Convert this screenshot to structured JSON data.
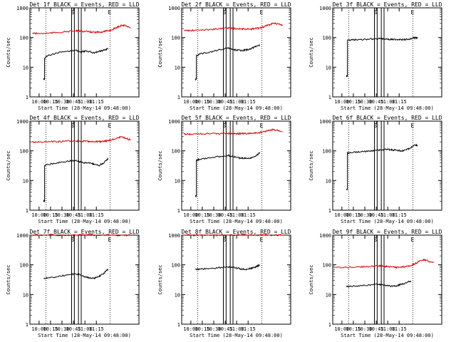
{
  "colors": {
    "events": "#000000",
    "lld": "#dd0000",
    "frame": "#000000",
    "background": "#ffffff"
  },
  "chart_data": [
    {
      "type": "line",
      "title": "Det 1f BLACK = Events, RED = LLD",
      "xlabel": "Start Time (28-May-14 09:48:00)",
      "ylabel": "Counts/sec",
      "yscale": "log",
      "ylim": [
        1,
        1000
      ],
      "xtick_labels": [
        "10:00",
        "10:15",
        "10:30",
        "10:45",
        "11:00",
        "11:15"
      ],
      "annotations": [
        "S",
        "E"
      ],
      "series": [
        {
          "name": "Events",
          "color": "black",
          "x": [
            0.3,
            0.32,
            0.32,
            0.4,
            0.6,
            0.8,
            1.0,
            1.1,
            1.2,
            1.3,
            1.4,
            1.5,
            1.6,
            1.7,
            1.7
          ],
          "y": [
            4,
            4,
            20,
            25,
            30,
            34,
            38,
            32,
            35,
            34,
            30,
            33,
            37,
            42,
            40
          ]
        },
        {
          "name": "LLD",
          "color": "red",
          "x": [
            0.05,
            0.2,
            0.4,
            0.6,
            0.8,
            1.0,
            1.1,
            1.2,
            1.3,
            1.4,
            1.5,
            1.6,
            1.7,
            1.8,
            1.9,
            2.0,
            2.1,
            2.2
          ],
          "y": [
            140,
            135,
            140,
            148,
            158,
            168,
            165,
            160,
            155,
            150,
            150,
            158,
            168,
            185,
            220,
            260,
            250,
            210
          ]
        }
      ]
    },
    {
      "type": "line",
      "title": "Det 2f BLACK = Events, RED = LLD",
      "xlabel": "Start Time (28-May-14 09:48:00)",
      "ylabel": "Counts/sec",
      "yscale": "log",
      "ylim": [
        1,
        1000
      ],
      "xtick_labels": [
        "10:00",
        "10:15",
        "10:30",
        "10:45",
        "11:00",
        "11:15"
      ],
      "annotations": [
        "S",
        "E"
      ],
      "series": [
        {
          "name": "Events",
          "color": "black",
          "x": [
            0.3,
            0.32,
            0.32,
            0.4,
            0.6,
            0.8,
            1.0,
            1.1,
            1.2,
            1.3,
            1.4,
            1.5,
            1.6,
            1.7,
            1.7
          ],
          "y": [
            4,
            4,
            24,
            28,
            32,
            38,
            45,
            40,
            38,
            36,
            38,
            42,
            48,
            56,
            52
          ]
        },
        {
          "name": "LLD",
          "color": "red",
          "x": [
            0.05,
            0.2,
            0.4,
            0.6,
            0.8,
            1.0,
            1.1,
            1.2,
            1.3,
            1.4,
            1.5,
            1.6,
            1.7,
            1.8,
            1.9,
            2.0,
            2.1,
            2.2
          ],
          "y": [
            175,
            170,
            178,
            185,
            195,
            210,
            205,
            200,
            195,
            190,
            190,
            200,
            210,
            230,
            265,
            300,
            290,
            255
          ]
        }
      ]
    },
    {
      "type": "line",
      "title": "Det 3f BLACK = Events, RED = LLD",
      "xlabel": "Start Time (28-May-14 09:48:00)",
      "ylabel": "Counts/sec",
      "yscale": "log",
      "ylim": [
        1,
        1000
      ],
      "xtick_labels": [
        "10:00",
        "10:15",
        "10:30",
        "10:45",
        "11:00",
        "11:15"
      ],
      "annotations": [
        "S",
        "E"
      ],
      "series": [
        {
          "name": "Events",
          "color": "black",
          "x": [
            0.3,
            0.32,
            0.32,
            0.4,
            0.6,
            0.8,
            1.0,
            1.1,
            1.2,
            1.3,
            1.4,
            1.5,
            1.6,
            1.7,
            1.8,
            1.85
          ],
          "y": [
            5,
            5,
            80,
            82,
            85,
            88,
            92,
            90,
            88,
            86,
            85,
            84,
            86,
            90,
            100,
            95
          ]
        }
      ]
    },
    {
      "type": "line",
      "title": "Det 4f BLACK = Events, RED = LLD",
      "xlabel": "Start Time (28-May-14 09:48:00)",
      "ylabel": "Counts/sec",
      "yscale": "log",
      "ylim": [
        1,
        1000
      ],
      "xtick_labels": [
        "10:00",
        "10:15",
        "10:30",
        "10:45",
        "11:00",
        "11:15"
      ],
      "annotations": [
        "S",
        "E"
      ],
      "series": [
        {
          "name": "Events",
          "color": "black",
          "x": [
            0.3,
            0.32,
            0.32,
            0.4,
            0.6,
            0.8,
            1.0,
            1.1,
            1.2,
            1.3,
            1.4,
            1.5,
            1.6,
            1.7,
            1.7
          ],
          "y": [
            2,
            2,
            32,
            35,
            40,
            44,
            48,
            42,
            40,
            38,
            36,
            32,
            38,
            55,
            50
          ]
        },
        {
          "name": "LLD",
          "color": "red",
          "x": [
            0.05,
            0.2,
            0.4,
            0.6,
            0.8,
            1.0,
            1.1,
            1.2,
            1.3,
            1.4,
            1.5,
            1.6,
            1.7,
            1.8,
            1.9,
            2.0,
            2.1,
            2.2
          ],
          "y": [
            200,
            195,
            200,
            205,
            210,
            215,
            212,
            210,
            208,
            205,
            205,
            210,
            220,
            240,
            270,
            290,
            260,
            230
          ]
        }
      ]
    },
    {
      "type": "line",
      "title": "Det 5f BLACK = Events, RED = LLD",
      "xlabel": "Start Time (28-May-14 09:48:00)",
      "ylabel": "Counts/sec",
      "yscale": "log",
      "ylim": [
        1,
        1000
      ],
      "xtick_labels": [
        "10:00",
        "10:15",
        "10:30",
        "10:45",
        "11:00",
        "11:15"
      ],
      "annotations": [
        "S",
        "E"
      ],
      "series": [
        {
          "name": "Events",
          "color": "black",
          "x": [
            0.3,
            0.32,
            0.32,
            0.4,
            0.6,
            0.8,
            1.0,
            1.1,
            1.2,
            1.3,
            1.4,
            1.5,
            1.6,
            1.7,
            1.7
          ],
          "y": [
            3,
            3,
            48,
            52,
            58,
            64,
            70,
            65,
            60,
            56,
            55,
            58,
            65,
            85,
            80
          ]
        },
        {
          "name": "LLD",
          "color": "red",
          "x": [
            0.05,
            0.2,
            0.4,
            0.6,
            0.8,
            1.0,
            1.1,
            1.2,
            1.3,
            1.4,
            1.5,
            1.6,
            1.7,
            1.8,
            1.9,
            2.0,
            2.1,
            2.2
          ],
          "y": [
            370,
            365,
            370,
            375,
            380,
            390,
            385,
            380,
            380,
            380,
            385,
            395,
            410,
            440,
            480,
            510,
            490,
            450
          ]
        }
      ]
    },
    {
      "type": "line",
      "title": "Det 6f BLACK = Events, RED = LLD",
      "xlabel": "Start Time (28-May-14 09:48:00)",
      "ylabel": "Counts/sec",
      "yscale": "log",
      "ylim": [
        1,
        1000
      ],
      "xtick_labels": [
        "10:00",
        "10:15",
        "10:30",
        "10:45",
        "11:00",
        "11:15"
      ],
      "annotations": [
        "S",
        "E"
      ],
      "series": [
        {
          "name": "Events",
          "color": "black",
          "x": [
            0.3,
            0.32,
            0.32,
            0.4,
            0.6,
            0.8,
            1.0,
            1.1,
            1.2,
            1.3,
            1.4,
            1.5,
            1.6,
            1.7,
            1.8,
            1.85
          ],
          "y": [
            5,
            5,
            85,
            88,
            92,
            98,
            105,
            110,
            112,
            108,
            102,
            100,
            108,
            125,
            160,
            150
          ]
        }
      ]
    },
    {
      "type": "line",
      "title": "Det 7f BLACK = Events, RED = LLD",
      "xlabel": "Start Time (28-May-14 09:48:00)",
      "ylabel": "Counts/sec",
      "yscale": "log",
      "ylim": [
        1,
        1000
      ],
      "xtick_labels": [
        "10:00",
        "10:15",
        "10:30",
        "10:45",
        "11:00",
        "11:15"
      ],
      "annotations": [
        "S",
        "E"
      ],
      "series": [
        {
          "name": "Events",
          "color": "black",
          "x": [
            0.3,
            0.4,
            0.6,
            0.8,
            1.0,
            1.1,
            1.2,
            1.3,
            1.4,
            1.5,
            1.6,
            1.7,
            1.7
          ],
          "y": [
            34,
            36,
            40,
            45,
            50,
            45,
            40,
            36,
            35,
            40,
            50,
            70,
            65
          ]
        },
        {
          "name": "LLD",
          "color": "red",
          "x": [
            0.05,
            0.4,
            0.8,
            1.2,
            1.6,
            2.0,
            2.2
          ],
          "y": [
            1000,
            1010,
            1000,
            1010,
            1000,
            1005,
            1000
          ]
        }
      ]
    },
    {
      "type": "line",
      "title": "Det 8f BLACK = Events, RED = LLD",
      "xlabel": "Start Time (28-May-14 09:48:00)",
      "ylabel": "Counts/sec",
      "yscale": "log",
      "ylim": [
        1,
        1000
      ],
      "xtick_labels": [
        "10:00",
        "10:15",
        "10:30",
        "10:45",
        "11:00",
        "11:15"
      ],
      "annotations": [
        "S",
        "E"
      ],
      "series": [
        {
          "name": "Events",
          "color": "black",
          "x": [
            0.3,
            0.4,
            0.6,
            0.8,
            1.0,
            1.1,
            1.2,
            1.3,
            1.4,
            1.5,
            1.6,
            1.7,
            1.7
          ],
          "y": [
            70,
            72,
            75,
            80,
            85,
            82,
            78,
            72,
            70,
            75,
            82,
            100,
            95
          ]
        },
        {
          "name": "LLD",
          "color": "red",
          "x": [
            0.05,
            0.4,
            0.8,
            1.2,
            1.6,
            2.0,
            2.2
          ],
          "y": [
            1000,
            1010,
            1000,
            1010,
            1000,
            1005,
            1000
          ]
        }
      ]
    },
    {
      "type": "line",
      "title": "Det 9f BLACK = Events, RED = LLD",
      "xlabel": "Start Time (28-May-14 09:48:00)",
      "ylabel": "Counts/sec",
      "yscale": "log",
      "ylim": [
        1,
        1000
      ],
      "xtick_labels": [
        "10:00",
        "10:15",
        "10:30",
        "10:45",
        "11:00",
        "11:15"
      ],
      "annotations": [
        "S",
        "E"
      ],
      "series": [
        {
          "name": "Events",
          "color": "black",
          "x": [
            0.3,
            0.4,
            0.6,
            0.8,
            1.0,
            1.1,
            1.2,
            1.3,
            1.4,
            1.5,
            1.6,
            1.7,
            1.7
          ],
          "y": [
            18,
            19,
            20,
            21,
            22,
            21,
            20,
            19,
            20,
            22,
            25,
            28,
            26
          ]
        },
        {
          "name": "LLD",
          "color": "red",
          "x": [
            0.05,
            0.2,
            0.4,
            0.6,
            0.8,
            1.0,
            1.1,
            1.2,
            1.3,
            1.4,
            1.5,
            1.6,
            1.7,
            1.8,
            1.9,
            2.0,
            2.1,
            2.2
          ],
          "y": [
            82,
            80,
            82,
            85,
            88,
            92,
            90,
            88,
            85,
            82,
            82,
            88,
            95,
            110,
            135,
            150,
            130,
            115
          ]
        }
      ]
    }
  ]
}
